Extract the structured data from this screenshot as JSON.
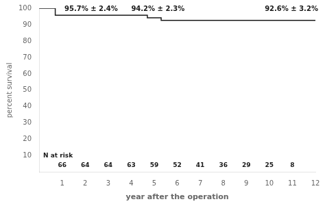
{
  "chart_data": {
    "type": "line",
    "line_style": "step",
    "color": "#1a1a1a",
    "xlabel": "year after the operation",
    "ylabel": "percent survival",
    "x": [
      0,
      0.3,
      0.7,
      4.0,
      4.7,
      5.3,
      12.0
    ],
    "values": [
      100,
      100,
      95.7,
      95.7,
      94.2,
      92.6,
      92.6
    ],
    "xlim": [
      0,
      12
    ],
    "ylim": [
      0,
      100
    ],
    "xticks": [
      1,
      2,
      3,
      4,
      5,
      6,
      7,
      8,
      9,
      10,
      11,
      12
    ],
    "yticks": [
      10,
      20,
      30,
      40,
      50,
      60,
      70,
      80,
      90,
      100
    ],
    "grid": false,
    "annotations": [
      {
        "text": "95.7% ± 2.4%",
        "x": 1.1,
        "y": 97.2
      },
      {
        "text": "94.2% ± 2.3%",
        "x": 4.0,
        "y": 97.2
      },
      {
        "text": "92.6% ± 3.2%",
        "x": 9.8,
        "y": 97.2
      }
    ],
    "n_at_risk": {
      "label": "N at risk",
      "x": [
        1,
        2,
        3,
        4,
        5,
        6,
        7,
        8,
        9,
        10,
        11
      ],
      "values": [
        66,
        64,
        64,
        63,
        59,
        52,
        41,
        36,
        29,
        25,
        8
      ]
    }
  }
}
